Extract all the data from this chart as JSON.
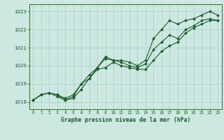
{
  "title": "Graphe pression niveau de la mer (hPa)",
  "background_color": "#cce8e0",
  "grid_color": "#aacccc",
  "line_color": "#1a5c2a",
  "spine_color": "#336633",
  "tick_color": "#1a5c2a",
  "xlim": [
    -0.5,
    23.5
  ],
  "ylim": [
    1017.6,
    1023.4
  ],
  "xticks": [
    0,
    1,
    2,
    3,
    4,
    5,
    6,
    7,
    8,
    9,
    10,
    11,
    12,
    13,
    14,
    15,
    16,
    17,
    18,
    19,
    20,
    21,
    22,
    23
  ],
  "yticks": [
    1018,
    1019,
    1020,
    1021,
    1022,
    1023
  ],
  "series": [
    {
      "x": [
        0,
        1,
        2,
        3,
        4,
        5,
        6,
        7,
        8,
        9,
        10,
        11,
        12,
        13,
        14,
        15,
        16,
        17,
        18,
        19,
        20,
        21,
        22,
        23
      ],
      "y": [
        1018.1,
        1018.4,
        1018.5,
        1018.4,
        1018.1,
        1018.3,
        1019.0,
        1019.3,
        1019.9,
        1020.5,
        1020.3,
        1020.3,
        1020.2,
        1020.0,
        1020.3,
        1021.5,
        1022.0,
        1022.5,
        1022.3,
        1022.5,
        1022.6,
        1022.8,
        1023.0,
        1022.8
      ]
    },
    {
      "x": [
        0,
        1,
        2,
        3,
        4,
        5,
        6,
        7,
        8,
        9,
        10,
        11,
        12,
        13,
        14,
        15,
        16,
        17,
        18,
        19,
        20,
        21,
        22,
        23
      ],
      "y": [
        1018.1,
        1018.4,
        1018.5,
        1018.4,
        1018.2,
        1018.4,
        1019.0,
        1019.5,
        1019.9,
        1020.4,
        1020.3,
        1020.2,
        1020.0,
        1019.9,
        1020.1,
        1020.9,
        1021.3,
        1021.7,
        1021.5,
        1022.0,
        1022.2,
        1022.5,
        1022.6,
        1022.5
      ]
    },
    {
      "x": [
        0,
        1,
        2,
        3,
        4,
        5,
        6,
        7,
        8,
        9,
        10,
        11,
        12,
        13,
        14,
        15,
        16,
        17,
        18,
        19,
        20,
        21,
        22,
        23
      ],
      "y": [
        1018.1,
        1018.4,
        1018.5,
        1018.3,
        1018.1,
        1018.2,
        1018.7,
        1019.3,
        1019.8,
        1019.9,
        1020.2,
        1020.0,
        1019.9,
        1019.8,
        1019.8,
        1020.3,
        1020.8,
        1021.1,
        1021.3,
        1021.8,
        1022.1,
        1022.3,
        1022.5,
        1022.5
      ]
    }
  ]
}
